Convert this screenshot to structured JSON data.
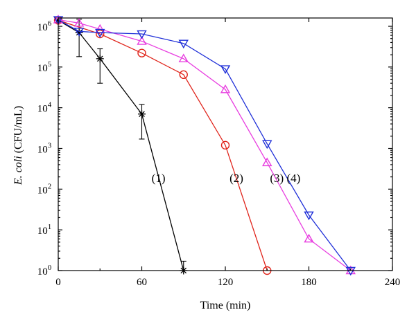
{
  "chart_data": {
    "type": "line",
    "xlabel": "Time (min)",
    "ylabel_italic": "E. coli",
    "ylabel_rest": " (CFU/mL)",
    "x_ticks": [
      "0",
      "60",
      "120",
      "180",
      "240"
    ],
    "xlim": [
      0,
      240
    ],
    "ylim": [
      1,
      1600000
    ],
    "yscale": "log",
    "y_ticks": [
      {
        "value": 1,
        "mantissa": "10",
        "exp": "0"
      },
      {
        "value": 10,
        "mantissa": "10",
        "exp": "1"
      },
      {
        "value": 100,
        "mantissa": "10",
        "exp": "2"
      },
      {
        "value": 1000,
        "mantissa": "10",
        "exp": "3"
      },
      {
        "value": 10000,
        "mantissa": "10",
        "exp": "4"
      },
      {
        "value": 100000,
        "mantissa": "10",
        "exp": "5"
      },
      {
        "value": 1000000,
        "mantissa": "10",
        "exp": "6"
      }
    ],
    "series": [
      {
        "label": "(1)",
        "color": "#000000",
        "marker": "star",
        "x": [
          0,
          15,
          30,
          60,
          90
        ],
        "y": [
          1400000,
          700000,
          160000,
          7000,
          1
        ],
        "err_low": [
          null,
          180000,
          40000,
          1700,
          null
        ],
        "err_high": [
          null,
          1500000,
          280000,
          12000,
          1.7
        ],
        "label_at": {
          "x": 72,
          "y": 150
        }
      },
      {
        "label": "(2)",
        "color": "#e0241b",
        "marker": "circle",
        "x": [
          0,
          30,
          60,
          90,
          120,
          150
        ],
        "y": [
          1400000,
          650000,
          220000,
          65000,
          1200,
          1
        ],
        "label_at": {
          "x": 128,
          "y": 150
        }
      },
      {
        "label": "(3)",
        "color": "#e83ee0",
        "marker": "triangle-up",
        "x": [
          0,
          15,
          30,
          60,
          90,
          120,
          150,
          180,
          210
        ],
        "y": [
          1450000,
          1200000,
          850000,
          430000,
          160000,
          28000,
          450,
          6,
          1
        ],
        "label_at": {
          "x": 157,
          "y": 150
        }
      },
      {
        "label": "(4)",
        "color": "#1f2fd8",
        "marker": "triangle-down",
        "x": [
          0,
          15,
          30,
          60,
          90,
          120,
          150,
          180,
          210
        ],
        "y": [
          1450000,
          750000,
          700000,
          650000,
          380000,
          90000,
          1300,
          23,
          1
        ],
        "label_at": {
          "x": 169,
          "y": 150
        }
      }
    ]
  }
}
